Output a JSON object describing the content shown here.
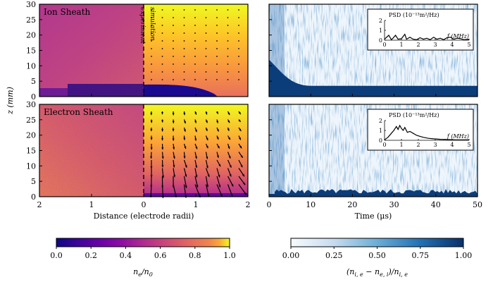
{
  "chart_data": [
    {
      "type": "heatmap",
      "title": "Ion Sheath",
      "annotations": [
        "experiment",
        "simulation"
      ],
      "ylabel": "z (mm)",
      "xlabel": "Distance (electrode radii)",
      "xticks": [
        "2",
        "1",
        "0",
        "1",
        "2"
      ],
      "yticks": [
        0,
        5,
        10,
        15,
        20,
        25,
        30
      ],
      "ylim": [
        0,
        30
      ],
      "colorbar": {
        "label": "n_e/n_0",
        "ticks": [
          "0.0",
          "0.2",
          "0.4",
          "0.6",
          "0.8",
          "1.0"
        ],
        "colormap": "plasma",
        "range": [
          0,
          1
        ]
      }
    },
    {
      "type": "heatmap",
      "title": "Electron Sheath",
      "ylabel": "z (mm)",
      "xlabel": "Distance (electrode radii)",
      "xticks": [
        "2",
        "1",
        "0",
        "1",
        "2"
      ],
      "yticks": [
        0,
        5,
        10,
        15,
        20,
        25,
        30
      ],
      "ylim": [
        0,
        30
      ]
    },
    {
      "type": "heatmap",
      "xlabel": "Time (μs)",
      "xticks": [
        0,
        10,
        20,
        30,
        40,
        50
      ],
      "xlim": [
        0,
        50
      ],
      "ylim": [
        0,
        30
      ],
      "sheath_height_mm": 3.5,
      "colorbar": {
        "label": "(n_{i,e} − n_{e,i})/n_{i,e}",
        "ticks": [
          "0.00",
          "0.25",
          "0.50",
          "0.75",
          "1.00"
        ],
        "colormap": "blues",
        "range": [
          0,
          1
        ]
      },
      "inset": {
        "type": "line",
        "title": "PSD (10⁻¹³m²/Hz)",
        "xlabel": "f (MHz)",
        "xticks": [
          0,
          1,
          2,
          3,
          4,
          5
        ],
        "yticks": [
          0,
          1,
          2
        ],
        "x": [
          0,
          0.25,
          0.4,
          0.5,
          0.65,
          0.8,
          1.0,
          1.2,
          1.3,
          1.5,
          1.7,
          1.9,
          2.1,
          2.3,
          2.5,
          2.7,
          2.9,
          3.1,
          3.3,
          3.5,
          3.7,
          3.9,
          4.1,
          4.3,
          4.5,
          4.7,
          5.0
        ],
        "y": [
          0.1,
          0.5,
          0.05,
          0.2,
          0.5,
          0.1,
          0.15,
          0.6,
          0.1,
          0.3,
          0.1,
          0.05,
          0.25,
          0.1,
          0.2,
          0.05,
          0.3,
          0.1,
          0.2,
          0.05,
          0.25,
          0.3,
          0.1,
          0.2,
          0.15,
          0.05,
          0.1
        ]
      }
    },
    {
      "type": "heatmap",
      "xlabel": "Time (μs)",
      "xticks": [
        0,
        10,
        20,
        30,
        40,
        50
      ],
      "xlim": [
        0,
        50
      ],
      "ylim": [
        0,
        30
      ],
      "inset": {
        "type": "line",
        "title": "PSD (10⁻¹³m²/Hz)",
        "xlabel": "f (MHz)",
        "xticks": [
          0,
          1,
          2,
          3,
          4,
          5
        ],
        "yticks": [
          0,
          1,
          2
        ],
        "x": [
          0,
          0.2,
          0.4,
          0.55,
          0.7,
          0.8,
          0.9,
          1.0,
          1.1,
          1.2,
          1.35,
          1.5,
          1.7,
          1.9,
          2.1,
          2.3,
          2.6,
          2.9,
          3.3,
          3.7,
          4.2,
          5.0
        ],
        "y": [
          0.05,
          0.3,
          0.7,
          1.0,
          1.4,
          1.1,
          1.5,
          1.2,
          1.0,
          1.3,
          0.8,
          0.9,
          0.7,
          0.5,
          0.4,
          0.3,
          0.2,
          0.15,
          0.1,
          0.08,
          0.05,
          0.05
        ]
      }
    }
  ]
}
